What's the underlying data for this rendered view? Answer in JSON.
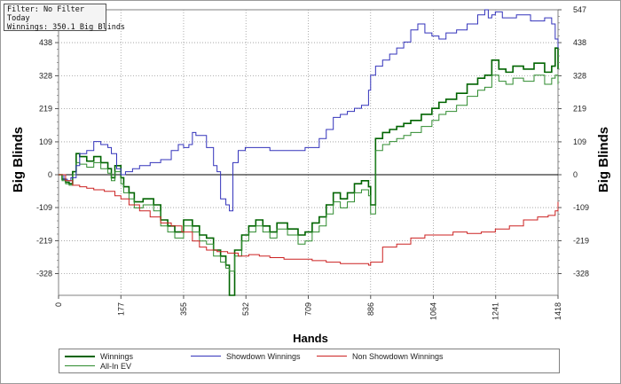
{
  "filter_box": {
    "filter": "Filter: No Filter",
    "period": "Today",
    "winnings": "Winnings: 350.1 Big Blinds"
  },
  "legend": {
    "winnings": "Winnings",
    "allin_ev": "All-In EV",
    "showdown": "Showdown Winnings",
    "non_showdown": "Non Showdown Winnings"
  },
  "colors": {
    "winnings": "#006400",
    "allin_ev": "#2e8b2e",
    "showdown": "#3333bb",
    "non_showdown": "#cc2222"
  },
  "chart_data": {
    "type": "line",
    "title": "",
    "xlabel": "Hands",
    "ylabel": "Big Blinds",
    "xlim": [
      0,
      1418
    ],
    "ylim": [
      -400,
      547
    ],
    "x_ticks": [
      0,
      177,
      355,
      532,
      709,
      886,
      1064,
      1241,
      1418
    ],
    "y_ticks": [
      -328,
      -219,
      -109,
      0,
      109,
      219,
      328,
      438,
      547
    ],
    "grid": true,
    "legend_position": "bottom",
    "series": [
      {
        "name": "Winnings",
        "key": "winnings",
        "width": 1.6,
        "x": [
          0,
          10,
          20,
          30,
          40,
          50,
          60,
          80,
          100,
          120,
          140,
          150,
          160,
          177,
          185,
          200,
          215,
          240,
          270,
          290,
          310,
          330,
          355,
          380,
          400,
          420,
          440,
          460,
          475,
          485,
          500,
          520,
          540,
          560,
          580,
          600,
          620,
          650,
          680,
          700,
          720,
          740,
          760,
          780,
          800,
          820,
          840,
          860,
          880,
          886,
          900,
          920,
          940,
          960,
          980,
          1000,
          1030,
          1060,
          1080,
          1100,
          1130,
          1160,
          1190,
          1210,
          1230,
          1250,
          1270,
          1290,
          1320,
          1350,
          1380,
          1400,
          1410,
          1418
        ],
        "y": [
          0,
          -15,
          -25,
          -30,
          10,
          70,
          60,
          45,
          60,
          40,
          20,
          -10,
          30,
          -10,
          -40,
          -60,
          -90,
          -80,
          -100,
          -150,
          -170,
          -190,
          -150,
          -170,
          -200,
          -210,
          -250,
          -270,
          -300,
          -400,
          -250,
          -200,
          -170,
          -150,
          -170,
          -190,
          -160,
          -180,
          -200,
          -190,
          -160,
          -140,
          -100,
          -60,
          -80,
          -60,
          -30,
          -20,
          -40,
          -100,
          120,
          140,
          150,
          160,
          170,
          180,
          200,
          220,
          240,
          250,
          270,
          300,
          320,
          330,
          380,
          350,
          340,
          360,
          350,
          370,
          340,
          360,
          420,
          350
        ]
      },
      {
        "name": "All-In EV",
        "key": "allin_ev",
        "width": 1,
        "x": [
          0,
          10,
          20,
          30,
          40,
          50,
          60,
          80,
          100,
          120,
          140,
          150,
          160,
          177,
          185,
          200,
          215,
          240,
          270,
          290,
          310,
          330,
          355,
          380,
          400,
          420,
          440,
          460,
          475,
          485,
          500,
          520,
          540,
          560,
          580,
          600,
          620,
          650,
          680,
          700,
          720,
          740,
          760,
          780,
          800,
          820,
          840,
          860,
          880,
          886,
          900,
          920,
          940,
          960,
          980,
          1000,
          1030,
          1060,
          1080,
          1100,
          1130,
          1160,
          1190,
          1210,
          1230,
          1250,
          1270,
          1290,
          1320,
          1350,
          1380,
          1400,
          1410,
          1418
        ],
        "y": [
          0,
          -20,
          -30,
          -35,
          0,
          40,
          35,
          25,
          40,
          20,
          5,
          -20,
          10,
          -30,
          -60,
          -80,
          -110,
          -100,
          -120,
          -170,
          -190,
          -210,
          -170,
          -190,
          -220,
          -230,
          -270,
          -290,
          -310,
          -320,
          -270,
          -220,
          -190,
          -170,
          -190,
          -210,
          -180,
          -200,
          -230,
          -220,
          -190,
          -170,
          -130,
          -90,
          -110,
          -90,
          -60,
          -50,
          -70,
          -130,
          80,
          100,
          110,
          120,
          130,
          140,
          160,
          180,
          200,
          210,
          230,
          260,
          280,
          290,
          330,
          310,
          300,
          320,
          310,
          330,
          300,
          320,
          330,
          300
        ]
      },
      {
        "name": "Showdown Winnings",
        "key": "showdown",
        "width": 1,
        "x": [
          0,
          15,
          25,
          35,
          50,
          60,
          80,
          100,
          120,
          140,
          150,
          165,
          177,
          190,
          210,
          230,
          260,
          290,
          320,
          340,
          355,
          370,
          380,
          390,
          400,
          420,
          440,
          450,
          460,
          470,
          475,
          485,
          495,
          510,
          530,
          560,
          600,
          650,
          700,
          720,
          740,
          760,
          780,
          800,
          820,
          840,
          860,
          880,
          886,
          900,
          920,
          940,
          960,
          980,
          1000,
          1020,
          1040,
          1060,
          1080,
          1100,
          1130,
          1160,
          1190,
          1210,
          1220,
          1230,
          1240,
          1260,
          1300,
          1340,
          1380,
          1400,
          1410,
          1418
        ],
        "y": [
          0,
          -15,
          -20,
          -10,
          30,
          70,
          80,
          110,
          100,
          90,
          70,
          20,
          0,
          10,
          20,
          30,
          40,
          50,
          80,
          100,
          90,
          100,
          140,
          130,
          130,
          90,
          30,
          10,
          -80,
          -80,
          -100,
          -120,
          40,
          80,
          90,
          90,
          80,
          80,
          90,
          90,
          120,
          150,
          190,
          200,
          210,
          220,
          230,
          280,
          330,
          360,
          380,
          400,
          420,
          440,
          480,
          500,
          470,
          460,
          450,
          470,
          480,
          500,
          530,
          547,
          520,
          530,
          540,
          520,
          530,
          510,
          520,
          500,
          450,
          420
        ]
      },
      {
        "name": "Non Showdown Winnings",
        "key": "non_showdown",
        "width": 1,
        "x": [
          0,
          20,
          40,
          60,
          80,
          100,
          130,
          160,
          177,
          200,
          230,
          260,
          290,
          320,
          350,
          380,
          400,
          420,
          450,
          480,
          510,
          540,
          570,
          600,
          640,
          680,
          720,
          760,
          800,
          840,
          880,
          886,
          920,
          960,
          1000,
          1040,
          1080,
          1120,
          1160,
          1200,
          1240,
          1280,
          1320,
          1360,
          1390,
          1410,
          1418
        ],
        "y": [
          0,
          -20,
          -35,
          -40,
          -45,
          -50,
          -55,
          -70,
          -80,
          -100,
          -120,
          -140,
          -160,
          -170,
          -190,
          -220,
          -240,
          -250,
          -255,
          -260,
          -270,
          -265,
          -270,
          -275,
          -280,
          -280,
          -285,
          -290,
          -295,
          -295,
          -300,
          -290,
          -240,
          -230,
          -210,
          -200,
          -200,
          -190,
          -195,
          -190,
          -180,
          -170,
          -150,
          -140,
          -135,
          -120,
          -90
        ]
      }
    ]
  }
}
